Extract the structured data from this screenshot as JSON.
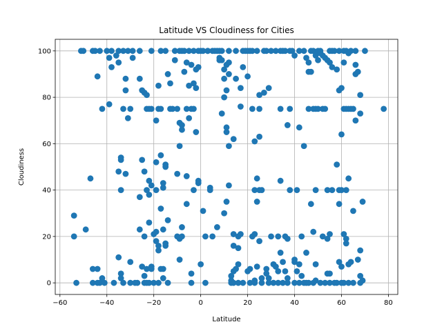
{
  "chart_data": {
    "type": "scatter",
    "title": "Latitude VS Cloudiness for Cities",
    "xlabel": "Latitude",
    "ylabel": "Cloudiness",
    "xlim": [
      -62,
      84
    ],
    "ylim": [
      -5,
      105
    ],
    "xticks": [
      -60,
      -40,
      -20,
      0,
      20,
      40,
      60,
      80
    ],
    "yticks": [
      0,
      20,
      40,
      60,
      80,
      100
    ],
    "grid": true,
    "marker_color": "#1f77b4",
    "points": [
      [
        -54,
        29
      ],
      [
        -54,
        20
      ],
      [
        -53,
        0
      ],
      [
        -51,
        100
      ],
      [
        -50,
        100
      ],
      [
        -49,
        23
      ],
      [
        -47,
        45
      ],
      [
        -46,
        6
      ],
      [
        -46,
        0
      ],
      [
        -46,
        100
      ],
      [
        -45,
        100
      ],
      [
        -44,
        6
      ],
      [
        -44,
        89
      ],
      [
        -44,
        0
      ],
      [
        -43,
        0
      ],
      [
        -43,
        100
      ],
      [
        -42,
        75
      ],
      [
        -42,
        2
      ],
      [
        -41,
        0
      ],
      [
        -40,
        100
      ],
      [
        -39,
        77
      ],
      [
        -39,
        97
      ],
      [
        -38,
        93
      ],
      [
        -38,
        100
      ],
      [
        -37,
        0
      ],
      [
        -36,
        98
      ],
      [
        -35,
        100
      ],
      [
        -35,
        95
      ],
      [
        -35,
        48
      ],
      [
        -35,
        11
      ],
      [
        -34,
        54
      ],
      [
        -34,
        53
      ],
      [
        -34,
        40
      ],
      [
        -34,
        2
      ],
      [
        -34,
        4
      ],
      [
        -33,
        75
      ],
      [
        -33,
        100
      ],
      [
        -33,
        0
      ],
      [
        -32,
        88
      ],
      [
        -32,
        47
      ],
      [
        -32,
        83
      ],
      [
        -31,
        100
      ],
      [
        -31,
        71
      ],
      [
        -30,
        9
      ],
      [
        -30,
        0
      ],
      [
        -30,
        75
      ],
      [
        -29,
        100
      ],
      [
        -29,
        97
      ],
      [
        -28,
        0
      ],
      [
        -27,
        0
      ],
      [
        -26,
        37
      ],
      [
        -26,
        88
      ],
      [
        -26,
        23
      ],
      [
        -26,
        100
      ],
      [
        -25,
        83
      ],
      [
        -25,
        7
      ],
      [
        -25,
        53
      ],
      [
        -24,
        0
      ],
      [
        -24,
        3
      ],
      [
        -24,
        20
      ],
      [
        -24,
        82
      ],
      [
        -24,
        48
      ],
      [
        -23,
        75
      ],
      [
        -23,
        40
      ],
      [
        -23,
        81
      ],
      [
        -23,
        6
      ],
      [
        -23,
        0
      ],
      [
        -22,
        26
      ],
      [
        -22,
        38
      ],
      [
        -22,
        75
      ],
      [
        -22,
        44
      ],
      [
        -22,
        0
      ],
      [
        -21,
        7
      ],
      [
        -21,
        75
      ],
      [
        -21,
        42
      ],
      [
        -21,
        6
      ],
      [
        -21,
        100
      ],
      [
        -20,
        21
      ],
      [
        -20,
        0
      ],
      [
        -19,
        22
      ],
      [
        -19,
        52
      ],
      [
        -19,
        40
      ],
      [
        -19,
        70
      ],
      [
        -19,
        18
      ],
      [
        -18,
        16
      ],
      [
        -18,
        14
      ],
      [
        -18,
        85
      ],
      [
        -18,
        0
      ],
      [
        -18,
        75
      ],
      [
        -17,
        100
      ],
      [
        -17,
        32
      ],
      [
        -17,
        6
      ],
      [
        -17,
        75
      ],
      [
        -17,
        55
      ],
      [
        -16,
        41
      ],
      [
        -16,
        43
      ],
      [
        -16,
        2
      ],
      [
        -16,
        6
      ],
      [
        -16,
        23
      ],
      [
        -15,
        17
      ],
      [
        -15,
        100
      ],
      [
        -15,
        16
      ],
      [
        -15,
        51
      ],
      [
        -15,
        50
      ],
      [
        -14,
        0
      ],
      [
        -14,
        27
      ],
      [
        -14,
        90
      ],
      [
        -13,
        75
      ],
      [
        -13,
        86
      ],
      [
        -12,
        75
      ],
      [
        -11,
        96
      ],
      [
        -11,
        100
      ],
      [
        -10,
        20
      ],
      [
        -10,
        75
      ],
      [
        -10,
        47
      ],
      [
        -9,
        69
      ],
      [
        -9,
        19
      ],
      [
        -9,
        59
      ],
      [
        -9,
        10
      ],
      [
        -9,
        100
      ],
      [
        -8,
        20
      ],
      [
        -8,
        66
      ],
      [
        -8,
        24
      ],
      [
        -8,
        68
      ],
      [
        -8,
        100
      ],
      [
        -7,
        100
      ],
      [
        -7,
        91
      ],
      [
        -6,
        75
      ],
      [
        -6,
        46
      ],
      [
        -6,
        34
      ],
      [
        -6,
        95
      ],
      [
        -5,
        71
      ],
      [
        -5,
        100
      ],
      [
        -5,
        85
      ],
      [
        -4,
        75
      ],
      [
        -4,
        0
      ],
      [
        -4,
        94
      ],
      [
        -4,
        4
      ],
      [
        -3,
        75
      ],
      [
        -3,
        40
      ],
      [
        -3,
        86
      ],
      [
        -3,
        100
      ],
      [
        -2,
        92
      ],
      [
        -2,
        84
      ],
      [
        -2,
        65
      ],
      [
        -1,
        100
      ],
      [
        -1,
        43
      ],
      [
        -1,
        44
      ],
      [
        -1,
        93
      ],
      [
        0,
        8
      ],
      [
        0,
        100
      ],
      [
        1,
        31
      ],
      [
        1,
        100
      ],
      [
        2,
        20
      ],
      [
        2,
        0
      ],
      [
        3,
        100
      ],
      [
        3,
        100
      ],
      [
        4,
        41
      ],
      [
        4,
        40
      ],
      [
        5,
        20
      ],
      [
        5,
        100
      ],
      [
        6,
        100
      ],
      [
        7,
        100
      ],
      [
        7,
        24
      ],
      [
        8,
        96
      ],
      [
        8,
        100
      ],
      [
        8,
        97
      ],
      [
        9,
        73
      ],
      [
        9,
        96
      ],
      [
        9,
        100
      ],
      [
        10,
        92
      ],
      [
        10,
        30
      ],
      [
        10,
        88
      ],
      [
        10,
        80
      ],
      [
        11,
        65
      ],
      [
        11,
        67
      ],
      [
        11,
        83
      ],
      [
        11,
        35
      ],
      [
        11,
        94
      ],
      [
        12,
        59
      ],
      [
        12,
        95
      ],
      [
        12,
        90
      ],
      [
        12,
        42
      ],
      [
        12,
        100
      ],
      [
        13,
        3
      ],
      [
        13,
        0
      ],
      [
        13,
        1
      ],
      [
        14,
        16
      ],
      [
        14,
        62
      ],
      [
        14,
        21
      ],
      [
        14,
        5
      ],
      [
        14,
        0
      ],
      [
        15,
        6
      ],
      [
        15,
        100
      ],
      [
        15,
        88
      ],
      [
        16,
        20
      ],
      [
        16,
        8
      ],
      [
        16,
        15
      ],
      [
        16,
        0
      ],
      [
        17,
        76
      ],
      [
        17,
        21
      ],
      [
        17,
        84
      ],
      [
        18,
        0
      ],
      [
        18,
        100
      ],
      [
        18,
        93
      ],
      [
        19,
        100
      ],
      [
        20,
        100
      ],
      [
        20,
        89
      ],
      [
        20,
        5
      ],
      [
        21,
        6
      ],
      [
        21,
        100
      ],
      [
        21,
        0
      ],
      [
        22,
        75
      ],
      [
        22,
        20
      ],
      [
        22,
        100
      ],
      [
        23,
        61
      ],
      [
        23,
        21
      ],
      [
        23,
        40
      ],
      [
        23,
        1
      ],
      [
        23,
        0
      ],
      [
        24,
        35
      ],
      [
        24,
        45
      ],
      [
        24,
        7
      ],
      [
        24,
        100
      ],
      [
        25,
        81
      ],
      [
        25,
        75
      ],
      [
        25,
        63
      ],
      [
        25,
        40
      ],
      [
        25,
        18
      ],
      [
        26,
        2
      ],
      [
        26,
        40
      ],
      [
        26,
        0
      ],
      [
        27,
        82
      ],
      [
        27,
        100
      ],
      [
        28,
        4
      ],
      [
        28,
        6
      ],
      [
        28,
        100
      ],
      [
        29,
        2
      ],
      [
        29,
        84
      ],
      [
        29,
        0
      ],
      [
        30,
        20
      ],
      [
        30,
        100
      ],
      [
        31,
        8
      ],
      [
        31,
        0
      ],
      [
        32,
        7
      ],
      [
        32,
        100
      ],
      [
        33,
        5
      ],
      [
        33,
        20
      ],
      [
        33,
        0
      ],
      [
        34,
        75
      ],
      [
        34,
        13
      ],
      [
        34,
        44
      ],
      [
        34,
        100
      ],
      [
        35,
        9
      ],
      [
        35,
        100
      ],
      [
        35,
        0
      ],
      [
        36,
        20
      ],
      [
        36,
        5
      ],
      [
        36,
        100
      ],
      [
        37,
        68
      ],
      [
        37,
        19
      ],
      [
        37,
        2
      ],
      [
        37,
        0
      ],
      [
        38,
        75
      ],
      [
        38,
        100
      ],
      [
        38,
        40
      ],
      [
        39,
        100
      ],
      [
        40,
        9
      ],
      [
        40,
        98
      ],
      [
        40,
        10
      ],
      [
        40,
        0
      ],
      [
        41,
        5
      ],
      [
        41,
        40
      ],
      [
        42,
        67
      ],
      [
        42,
        8
      ],
      [
        42,
        100
      ],
      [
        42,
        0
      ],
      [
        43,
        3
      ],
      [
        43,
        20
      ],
      [
        44,
        59
      ],
      [
        44,
        0
      ],
      [
        44,
        100
      ],
      [
        45,
        0
      ],
      [
        45,
        97
      ],
      [
        45,
        13
      ],
      [
        46,
        91
      ],
      [
        46,
        95
      ],
      [
        46,
        75
      ],
      [
        46,
        0
      ],
      [
        47,
        34
      ],
      [
        47,
        100
      ],
      [
        47,
        91
      ],
      [
        48,
        75
      ],
      [
        48,
        22
      ],
      [
        48,
        0
      ],
      [
        48,
        100
      ],
      [
        49,
        75
      ],
      [
        49,
        8
      ],
      [
        49,
        40
      ],
      [
        49,
        1
      ],
      [
        49,
        98
      ],
      [
        50,
        100
      ],
      [
        50,
        96
      ],
      [
        50,
        75
      ],
      [
        51,
        100
      ],
      [
        51,
        99
      ],
      [
        51,
        0
      ],
      [
        52,
        75
      ],
      [
        52,
        20
      ],
      [
        52,
        98
      ],
      [
        53,
        97
      ],
      [
        53,
        75
      ],
      [
        53,
        0
      ],
      [
        54,
        40
      ],
      [
        54,
        4
      ],
      [
        54,
        96
      ],
      [
        54,
        19
      ],
      [
        55,
        100
      ],
      [
        55,
        95
      ],
      [
        55,
        21
      ],
      [
        55,
        4
      ],
      [
        55,
        0
      ],
      [
        56,
        40
      ],
      [
        56,
        100
      ],
      [
        56,
        93
      ],
      [
        57,
        100
      ],
      [
        57,
        0
      ],
      [
        58,
        92
      ],
      [
        58,
        51
      ],
      [
        58,
        0
      ],
      [
        59,
        100
      ],
      [
        59,
        9
      ],
      [
        59,
        34
      ],
      [
        59,
        40
      ],
      [
        59,
        83
      ],
      [
        60,
        84
      ],
      [
        60,
        64
      ],
      [
        60,
        7
      ],
      [
        60,
        40
      ],
      [
        60,
        0
      ],
      [
        61,
        75
      ],
      [
        61,
        21
      ],
      [
        61,
        100
      ],
      [
        61,
        95
      ],
      [
        61,
        0
      ],
      [
        62,
        75
      ],
      [
        62,
        19
      ],
      [
        62,
        40
      ],
      [
        62,
        17
      ],
      [
        62,
        100
      ],
      [
        63,
        75
      ],
      [
        63,
        99
      ],
      [
        63,
        8
      ],
      [
        63,
        45
      ],
      [
        63,
        0
      ],
      [
        64,
        75
      ],
      [
        64,
        100
      ],
      [
        64,
        9
      ],
      [
        65,
        31
      ],
      [
        65,
        75
      ],
      [
        65,
        0
      ],
      [
        66,
        100
      ],
      [
        66,
        70
      ],
      [
        66,
        94
      ],
      [
        66,
        90
      ],
      [
        67,
        10
      ],
      [
        67,
        91
      ],
      [
        68,
        73
      ],
      [
        68,
        14
      ],
      [
        68,
        3
      ],
      [
        68,
        0
      ],
      [
        68,
        81
      ],
      [
        69,
        35
      ],
      [
        69,
        1
      ],
      [
        70,
        100
      ],
      [
        78,
        75
      ]
    ]
  }
}
